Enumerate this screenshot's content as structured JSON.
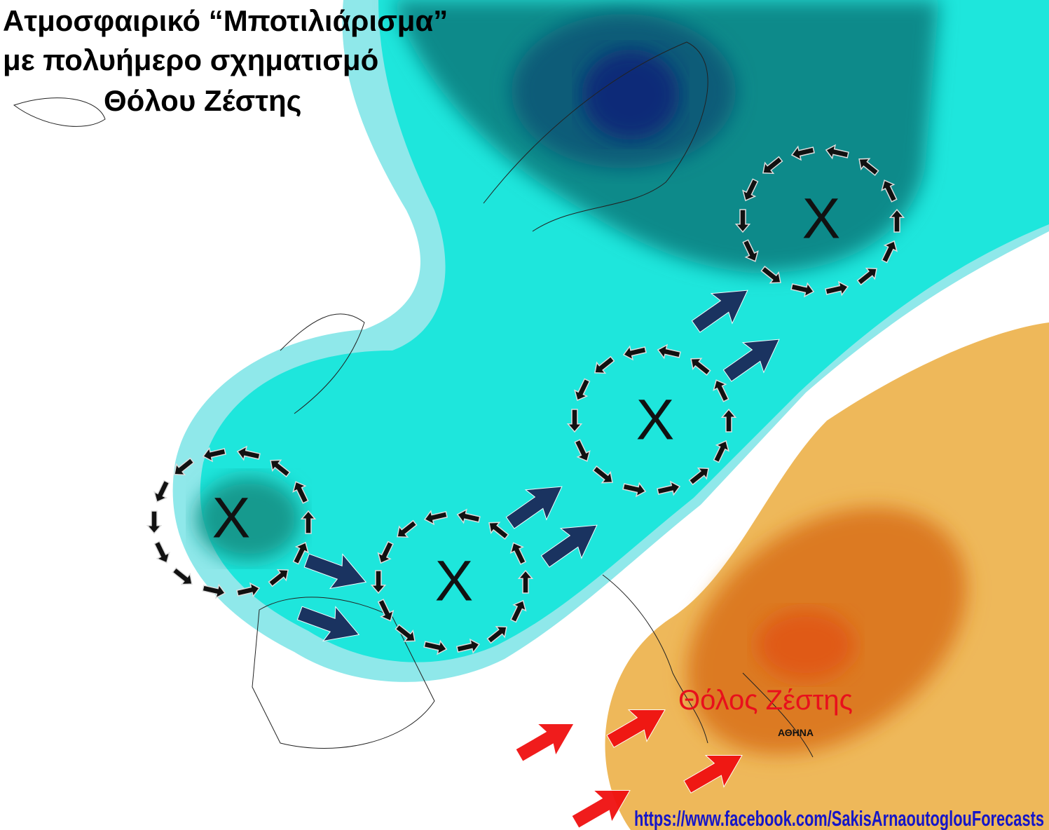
{
  "title": [
    "Ατμοσφαιρικό “Μποτιλιάρισμα”",
    "με πολυήμερο σχηματισμό",
    "Θόλου Ζέστης"
  ],
  "lows": [
    "X",
    "X",
    "X",
    "X"
  ],
  "dome_label": "Θόλος Ζέστης",
  "city": "ΑΘΗΝΑ",
  "source": "https://www.facebook.com/SakisArnaoutoglouForecasts"
}
